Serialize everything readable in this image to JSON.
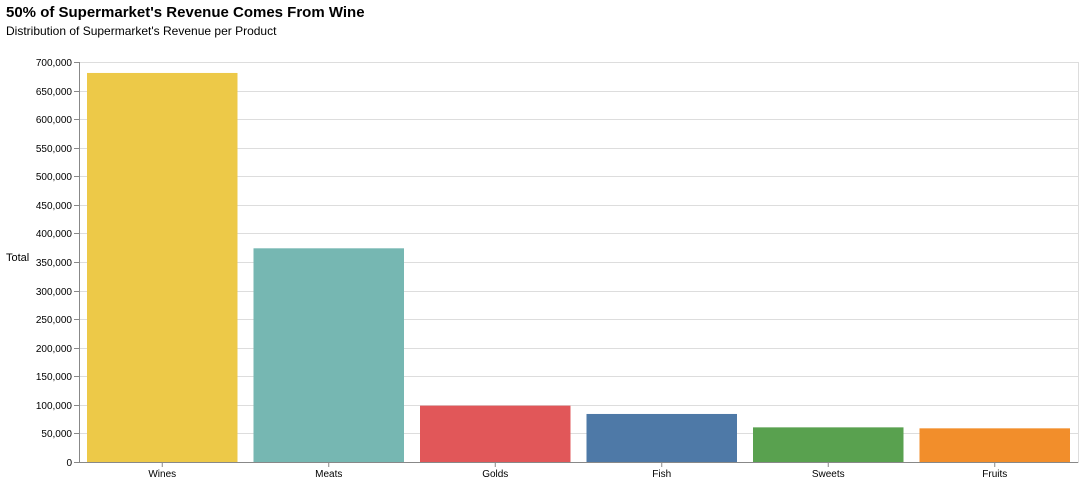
{
  "chart_data": {
    "type": "bar",
    "title": "50% of Supermarket's Revenue Comes From Wine",
    "subtitle": "Distribution of Supermarket's Revenue per Product",
    "xlabel": "",
    "ylabel": "Total",
    "categories": [
      "Wines",
      "Meats",
      "Golds",
      "Fish",
      "Sweets",
      "Fruits"
    ],
    "values": [
      680816,
      373968,
      98609,
      84057,
      60621,
      58917
    ],
    "colors": [
      "#edc948",
      "#76b7b2",
      "#e15759",
      "#4e79a7",
      "#59a14f",
      "#f28e2b"
    ],
    "ylim": [
      0,
      700000
    ],
    "yticks": [
      0,
      50000,
      100000,
      150000,
      200000,
      250000,
      300000,
      350000,
      400000,
      450000,
      500000,
      550000,
      600000,
      650000,
      700000
    ],
    "ytick_labels": [
      "0",
      "50,000",
      "100,000",
      "150,000",
      "200,000",
      "250,000",
      "300,000",
      "350,000",
      "400,000",
      "450,000",
      "500,000",
      "550,000",
      "600,000",
      "650,000",
      "700,000"
    ],
    "grid": true,
    "legend": false
  }
}
